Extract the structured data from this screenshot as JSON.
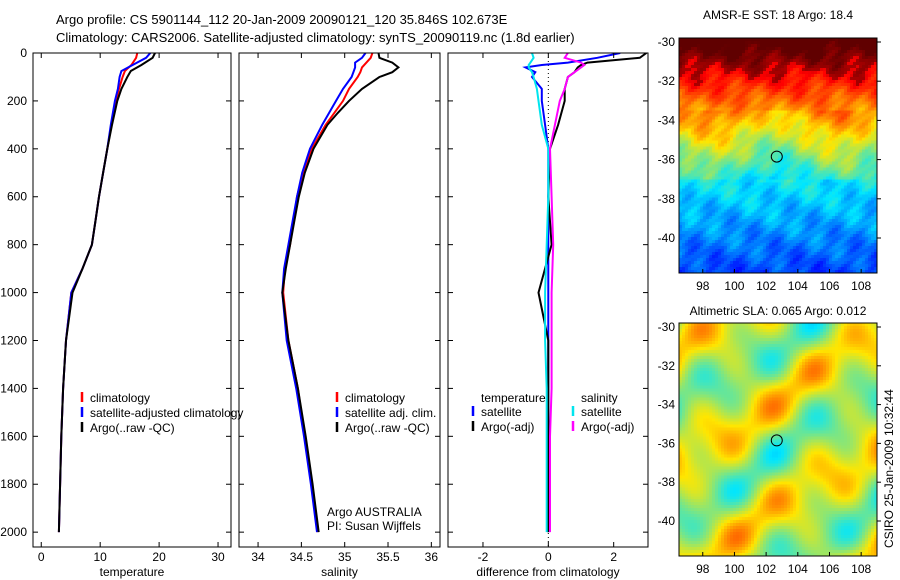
{
  "title": {
    "line1": "Argo profile: CS 5901144_112 20-Jan-2009 20090121_120 35.846S 102.673E",
    "line2": "Climatology: CARS2006. Satellite-adjusted climatology: synTS_20090119.nc (1.8d earlier)"
  },
  "credit": "CSIRO 25-Jan-2009 10:32:44",
  "colors": {
    "climatology": "#ff0000",
    "satellite": "#0000ff",
    "argo": "#000000",
    "sal_satellite": "#00e5ee",
    "sal_argo": "#ff00ff"
  },
  "chart_data": [
    {
      "type": "line",
      "id": "temperature",
      "xlabel": "temperature",
      "ylabel": "",
      "xlim": [
        -1.4,
        32.2
      ],
      "ylim": [
        2062,
        0
      ],
      "xticks": [
        0,
        10,
        20,
        30
      ],
      "xtick_labels": [
        "0",
        "10",
        "20",
        "30"
      ],
      "yticks": [
        0,
        200,
        400,
        600,
        800,
        1000,
        1200,
        1400,
        1600,
        1800,
        2000
      ],
      "ytick_labels": [
        "0",
        "200",
        "400",
        "600",
        "800",
        "1000",
        "1200",
        "1400",
        "1600",
        "1800",
        "2000"
      ],
      "depth": [
        0,
        20,
        50,
        75,
        100,
        150,
        200,
        300,
        400,
        500,
        600,
        700,
        800,
        900,
        1000,
        1200,
        1400,
        1600,
        1800,
        2000
      ],
      "series": [
        {
          "name": "climatology",
          "color": "#ff0000",
          "values": [
            16.3,
            16.1,
            15.3,
            14.2,
            13.8,
            13.2,
            12.7,
            11.9,
            11.2,
            10.5,
            9.8,
            9.2,
            8.6,
            7.0,
            5.1,
            4.2,
            3.7,
            3.4,
            3.2,
            3.0
          ]
        },
        {
          "name": "satellite-adjusted climatology",
          "color": "#0000ff",
          "values": [
            18.5,
            17.8,
            15.5,
            13.6,
            13.3,
            13.0,
            12.5,
            11.8,
            11.2,
            10.5,
            9.8,
            9.2,
            8.6,
            7.0,
            5.1,
            4.2,
            3.7,
            3.4,
            3.2,
            3.0
          ]
        },
        {
          "name": "Argo(..raw -QC)",
          "color": "#000000",
          "values": [
            19.3,
            18.9,
            17.0,
            15.2,
            14.6,
            13.6,
            12.9,
            12.0,
            11.2,
            10.5,
            9.8,
            9.2,
            8.6,
            7.0,
            5.3,
            4.2,
            3.7,
            3.4,
            3.2,
            3.0
          ]
        }
      ],
      "legend": [
        "climatology",
        "satellite-adjusted climatology",
        "Argo(..raw -QC)"
      ]
    },
    {
      "type": "line",
      "id": "salinity",
      "xlabel": "salinity",
      "xlim": [
        33.78,
        36.1
      ],
      "ylim": [
        2062,
        0
      ],
      "xticks": [
        34,
        34.5,
        35,
        35.5,
        36
      ],
      "xtick_labels": [
        "34",
        "34.5",
        "35",
        "35.5",
        "36"
      ],
      "depth": [
        0,
        20,
        40,
        60,
        80,
        100,
        150,
        200,
        250,
        300,
        400,
        500,
        600,
        700,
        800,
        900,
        1000,
        1200,
        1400,
        1600,
        1800,
        2000
      ],
      "series": [
        {
          "name": "climatology",
          "color": "#ff0000",
          "values": [
            35.32,
            35.3,
            35.25,
            35.2,
            35.18,
            35.15,
            35.05,
            34.98,
            34.88,
            34.78,
            34.62,
            34.52,
            34.45,
            34.41,
            34.37,
            34.31,
            34.29,
            34.35,
            34.46,
            34.54,
            34.62,
            34.69
          ]
        },
        {
          "name": "satellite adj. clim.",
          "color": "#0000ff",
          "values": [
            35.24,
            35.2,
            35.12,
            35.12,
            35.1,
            35.08,
            34.98,
            34.9,
            34.82,
            34.74,
            34.6,
            34.51,
            34.45,
            34.4,
            34.35,
            34.3,
            34.28,
            34.33,
            34.44,
            34.53,
            34.61,
            34.68
          ]
        },
        {
          "name": "Argo(..raw -QC)",
          "color": "#000000",
          "values": [
            35.39,
            35.4,
            35.55,
            35.62,
            35.55,
            35.4,
            35.2,
            35.05,
            34.92,
            34.8,
            34.64,
            34.54,
            34.47,
            34.42,
            34.37,
            34.32,
            34.28,
            34.35,
            34.46,
            34.55,
            34.63,
            34.7
          ]
        }
      ],
      "legend": [
        "climatology",
        "satellite adj. clim.",
        "Argo(..raw -QC)"
      ],
      "annotations": [
        "Argo AUSTRALIA",
        "PI: Susan Wijffels"
      ]
    },
    {
      "type": "line",
      "id": "difference",
      "xlabel": "difference from climatology",
      "xlim": [
        -3.07,
        3.05
      ],
      "ylim": [
        2062,
        0
      ],
      "xticks": [
        -2,
        0,
        2
      ],
      "xtick_labels": [
        "-2",
        "0",
        "2"
      ],
      "depth": [
        0,
        20,
        40,
        50,
        60,
        80,
        100,
        150,
        200,
        300,
        400,
        600,
        800,
        1000,
        1200,
        1400,
        1600,
        1800,
        2000
      ],
      "series": [
        {
          "name": "temperature satellite",
          "color": "#0000ff",
          "values": [
            2.2,
            1.5,
            0.6,
            -0.2,
            -0.7,
            -0.4,
            -0.5,
            -0.2,
            -0.2,
            -0.1,
            0.0,
            0.0,
            0.0,
            0.0,
            0.0,
            0.0,
            0.0,
            0.0,
            0.0
          ]
        },
        {
          "name": "temperature Argo(-adj)",
          "color": "#000000",
          "values": [
            3.0,
            2.8,
            1.2,
            1.0,
            0.9,
            0.8,
            0.6,
            0.5,
            0.5,
            0.3,
            0.05,
            0.0,
            0.1,
            -0.3,
            0.0,
            0.0,
            0.0,
            0.0,
            0.0
          ]
        },
        {
          "name": "salinity satellite",
          "color": "#00e5ee",
          "values": [
            -0.5,
            -0.45,
            -0.55,
            -0.6,
            -0.6,
            -0.5,
            -0.45,
            -0.35,
            -0.3,
            -0.2,
            0.0,
            0.0,
            -0.05,
            -0.1,
            -0.1,
            -0.05,
            -0.05,
            -0.05,
            -0.05
          ]
        },
        {
          "name": "salinity Argo(-adj)",
          "color": "#ff00ff",
          "values": [
            0.6,
            0.5,
            1.0,
            1.1,
            1.0,
            0.8,
            0.6,
            0.5,
            0.35,
            0.2,
            0.05,
            0.1,
            0.15,
            0.1,
            0.1,
            0.1,
            0.05,
            0.05,
            0.05
          ]
        }
      ],
      "legend_groups": [
        {
          "title": "temperature",
          "items": [
            {
              "label": "satellite",
              "color": "#0000ff"
            },
            {
              "label": "Argo(-adj)",
              "color": "#000000"
            }
          ]
        },
        {
          "title": "salinity",
          "items": [
            {
              "label": "satellite",
              "color": "#00e5ee"
            },
            {
              "label": "Argo(-adj)",
              "color": "#ff00ff"
            }
          ]
        }
      ]
    },
    {
      "type": "heatmap",
      "id": "sst",
      "title": "AMSR-E SST: 18 Argo: 18.4",
      "xlim": [
        96.5,
        109.0
      ],
      "ylim": [
        -41.85,
        -30
      ],
      "xticks": [
        98,
        100,
        102,
        104,
        106,
        108
      ],
      "xtick_labels": [
        "98",
        "100",
        "102",
        "104",
        "106",
        "108"
      ],
      "yticks": [
        -30,
        -32,
        -34,
        -36,
        -38,
        -40
      ],
      "ytick_labels": [
        "-30",
        "-32",
        "-34",
        "-36",
        "-38",
        "-40"
      ],
      "marker": {
        "lon": 102.673,
        "lat": -35.846
      }
    },
    {
      "type": "heatmap",
      "id": "sla",
      "title": "Altimetric SLA: 0.065 Argo: 0.012",
      "xlim": [
        96.5,
        109.0
      ],
      "ylim": [
        -41.85,
        -30
      ],
      "xticks": [
        98,
        100,
        102,
        104,
        106,
        108
      ],
      "xtick_labels": [
        "98",
        "100",
        "102",
        "104",
        "106",
        "108"
      ],
      "yticks": [
        -30,
        -32,
        -34,
        -36,
        -38,
        -40
      ],
      "ytick_labels": [
        "-30",
        "-32",
        "-34",
        "-36",
        "-38",
        "-40"
      ],
      "marker": {
        "lon": 102.673,
        "lat": -35.846
      }
    }
  ]
}
